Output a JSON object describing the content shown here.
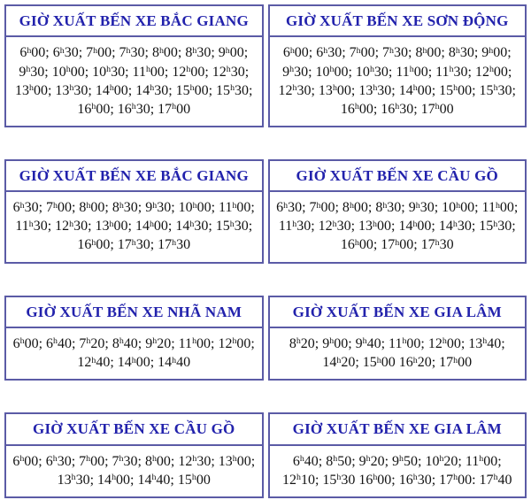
{
  "colors": {
    "header_text": "#2222ac",
    "border": "#5b5ba6",
    "body_text": "#141414",
    "background": "#ffffff"
  },
  "tables": [
    {
      "cells": [
        {
          "title": "GIỜ XUẤT BẾN XE BẮC GIANG",
          "times": "6h00; 6h30; 7h00; 7h30; 8h00; 8h30; 9h00; 9h30; 10h00; 10h30; 11h00; 12h00; 12h30; 13h00; 13h30; 14h00; 14h30; 15h00; 15h30; 16h00; 16h30; 17h00"
        },
        {
          "title": "GIỜ XUẤT BẾN XE SƠN ĐỘNG",
          "times": "6h00; 6h30; 7h00; 7h30; 8h00; 8h30; 9h00; 9h30; 10h00; 10h30; 11h00; 11h30; 12h00; 12h30; 13h00; 13h30; 14h00; 15h00; 15h30; 16h00; 16h30; 17h00"
        }
      ]
    },
    {
      "cells": [
        {
          "title": "GIỜ XUẤT BẾN XE BẮC GIANG",
          "times": "6h30; 7h00; 8h00; 8h30; 9h30; 10h00; 11h00; 11h30; 12h30; 13h00; 14h00; 14h30; 15h30; 16h00; 17h30; 17h30"
        },
        {
          "title": "GIỜ XUẤT BẾN XE CẦU GỒ",
          "times": "6h30; 7h00; 8h00; 8h30; 9h30; 10h00; 11h00; 11h30; 12h30; 13h00; 14h00; 14h30; 15h30; 16h00; 17h00; 17h30"
        }
      ]
    },
    {
      "cells": [
        {
          "title": "GIỜ XUẤT BẾN XE NHÃ NAM",
          "times": "6h00; 6h40; 7h20; 8h40; 9h20; 11h00; 12h00; 12h40; 14h00; 14h40"
        },
        {
          "title": "GIỜ XUẤT BẾN XE GIA LÂM",
          "times": "8h20; 9h00; 9h40; 11h00; 12h00; 13h40; 14h20; 15h00 16h20; 17h00"
        }
      ]
    },
    {
      "cells": [
        {
          "title": "GIỜ XUẤT BẾN XE CẦU GỒ",
          "times": "6h00; 6h30; 7h00; 7h30; 8h00; 12h30; 13h00; 13h30; 14h00; 14h40; 15h00"
        },
        {
          "title": "GIỜ XUẤT BẾN XE GIA LÂM",
          "times": "6h40; 8h50; 9h20; 9h50; 10h20; 11h00; 12h10; 15h30 16h00; 16h30; 17h00: 17h40"
        }
      ]
    }
  ]
}
